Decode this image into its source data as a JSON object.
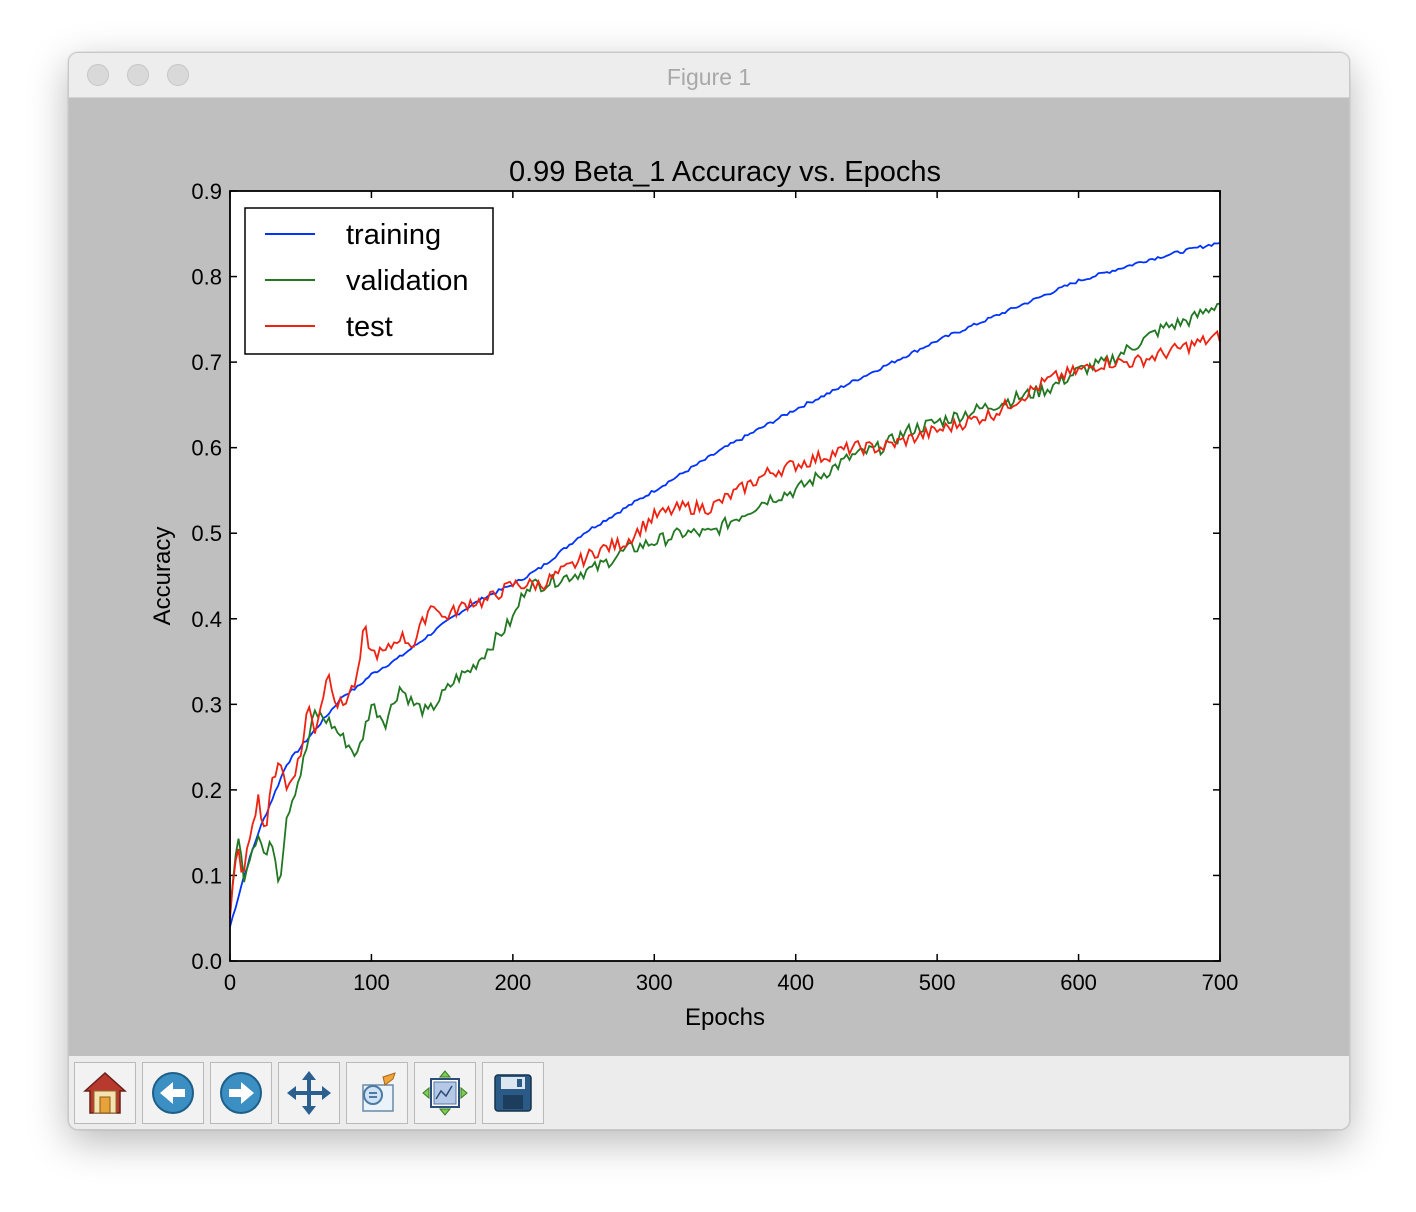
{
  "window": {
    "title": "Figure 1"
  },
  "toolbar": {
    "buttons": [
      {
        "icon": "home-icon"
      },
      {
        "icon": "back-arrow-icon"
      },
      {
        "icon": "forward-arrow-icon"
      },
      {
        "icon": "pan-move-icon"
      },
      {
        "icon": "zoom-rect-icon"
      },
      {
        "icon": "configure-subplots-icon"
      },
      {
        "icon": "save-floppy-icon"
      }
    ]
  },
  "colors": {
    "training": "#0033ff",
    "validation": "#227722",
    "test": "#ee2211",
    "canvas": "#bfbfbf"
  },
  "chart_data": {
    "type": "line",
    "title": "0.99 Beta_1 Accuracy vs. Epochs",
    "xlabel": "Epochs",
    "ylabel": "Accuracy",
    "xlim": [
      0,
      700
    ],
    "ylim": [
      0.0,
      0.9
    ],
    "xticks": [
      "0",
      "100",
      "200",
      "300",
      "400",
      "500",
      "600",
      "700"
    ],
    "yticks": [
      "0.0",
      "0.1",
      "0.2",
      "0.3",
      "0.4",
      "0.5",
      "0.6",
      "0.7",
      "0.8",
      "0.9"
    ],
    "legend_position": "top-left",
    "grid": false,
    "series": [
      {
        "name": "training",
        "x": [
          0,
          10,
          20,
          30,
          40,
          50,
          60,
          70,
          80,
          90,
          100,
          120,
          140,
          160,
          180,
          200,
          220,
          250,
          300,
          350,
          400,
          450,
          500,
          550,
          600,
          650,
          700
        ],
        "y": [
          0.04,
          0.1,
          0.15,
          0.19,
          0.23,
          0.25,
          0.27,
          0.29,
          0.31,
          0.32,
          0.335,
          0.355,
          0.38,
          0.405,
          0.425,
          0.44,
          0.46,
          0.5,
          0.55,
          0.6,
          0.645,
          0.685,
          0.725,
          0.76,
          0.795,
          0.82,
          0.84
        ]
      },
      {
        "name": "validation",
        "x": [
          0,
          5,
          10,
          15,
          20,
          25,
          30,
          35,
          40,
          50,
          60,
          70,
          80,
          90,
          100,
          110,
          120,
          130,
          140,
          150,
          160,
          170,
          180,
          190,
          200,
          210,
          220,
          240,
          260,
          280,
          300,
          320,
          340,
          360,
          380,
          400,
          420,
          440,
          460,
          480,
          500,
          520,
          540,
          560,
          580,
          600,
          620,
          640,
          660,
          680,
          700
        ],
        "y": [
          0.05,
          0.15,
          0.1,
          0.13,
          0.15,
          0.12,
          0.14,
          0.09,
          0.17,
          0.22,
          0.29,
          0.28,
          0.26,
          0.24,
          0.3,
          0.28,
          0.32,
          0.3,
          0.29,
          0.31,
          0.33,
          0.34,
          0.36,
          0.38,
          0.4,
          0.44,
          0.44,
          0.45,
          0.46,
          0.48,
          0.49,
          0.5,
          0.5,
          0.52,
          0.54,
          0.55,
          0.57,
          0.59,
          0.6,
          0.62,
          0.63,
          0.64,
          0.65,
          0.66,
          0.67,
          0.69,
          0.7,
          0.72,
          0.74,
          0.75,
          0.77
        ]
      },
      {
        "name": "test",
        "x": [
          0,
          5,
          10,
          15,
          20,
          25,
          30,
          35,
          40,
          50,
          55,
          60,
          70,
          75,
          80,
          90,
          95,
          100,
          110,
          120,
          130,
          140,
          145,
          150,
          160,
          170,
          180,
          190,
          200,
          210,
          220,
          240,
          260,
          280,
          300,
          320,
          340,
          360,
          380,
          400,
          420,
          440,
          460,
          480,
          500,
          520,
          540,
          560,
          580,
          600,
          620,
          640,
          660,
          680,
          700
        ],
        "y": [
          0.05,
          0.13,
          0.1,
          0.16,
          0.19,
          0.15,
          0.21,
          0.24,
          0.2,
          0.24,
          0.3,
          0.27,
          0.34,
          0.3,
          0.3,
          0.33,
          0.39,
          0.36,
          0.36,
          0.38,
          0.37,
          0.41,
          0.42,
          0.4,
          0.41,
          0.42,
          0.42,
          0.43,
          0.44,
          0.44,
          0.44,
          0.46,
          0.48,
          0.49,
          0.52,
          0.53,
          0.53,
          0.55,
          0.57,
          0.58,
          0.59,
          0.6,
          0.6,
          0.61,
          0.62,
          0.63,
          0.64,
          0.66,
          0.68,
          0.69,
          0.7,
          0.7,
          0.71,
          0.72,
          0.73
        ]
      }
    ]
  }
}
